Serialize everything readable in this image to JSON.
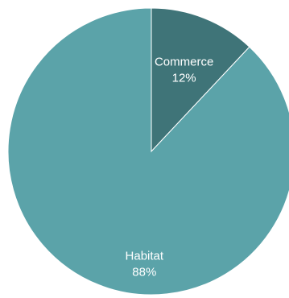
{
  "chart_data": {
    "type": "pie",
    "title": "",
    "slices": [
      {
        "label": "Commerce",
        "value": 12,
        "value_label": "12%",
        "color": "#3f7478"
      },
      {
        "label": "Habitat",
        "value": 88,
        "value_label": "88%",
        "color": "#5ba3a9"
      }
    ],
    "start_angle": "12 o'clock",
    "direction": "clockwise",
    "legend": "none",
    "labels_inside_slices": true
  }
}
